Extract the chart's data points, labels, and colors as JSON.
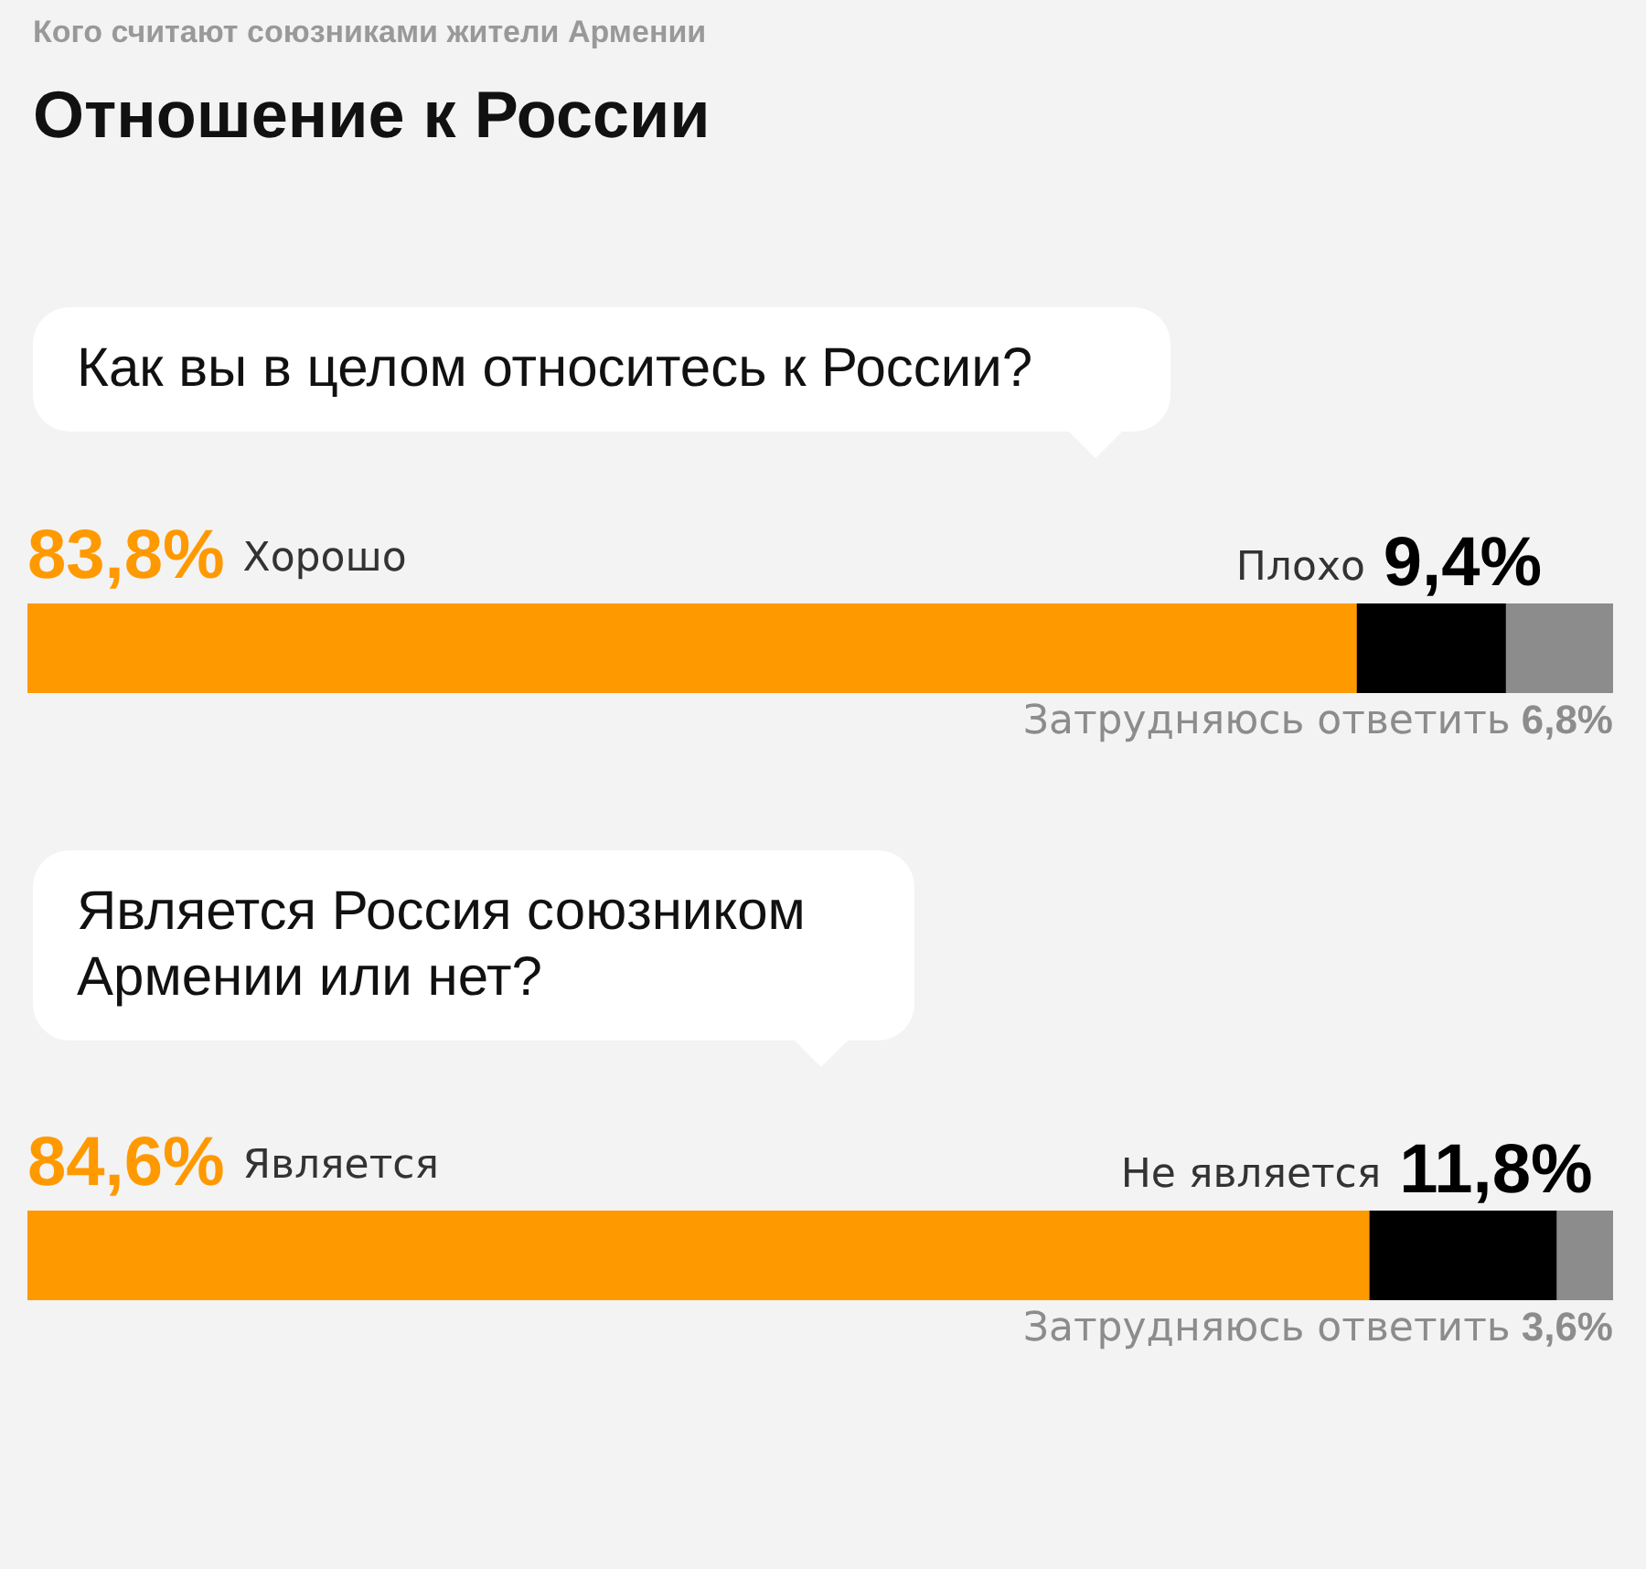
{
  "chart_data": [
    {
      "type": "other",
      "subtitle": "Кого считают союзниками жители Армении",
      "title": "Отношение к России"
    },
    {
      "type": "bar",
      "title": "Как вы в целом относитесь к России?",
      "orientation": "horizontal",
      "stacked": true,
      "categories": [
        null
      ],
      "xlim": [
        0,
        100
      ],
      "tick_labels": false,
      "series": [
        {
          "name": "Хорошо",
          "color": "#ff9900",
          "values": [
            83.8
          ],
          "value_labels": [
            "83,8%"
          ]
        },
        {
          "name": "Плохо",
          "color": "#000000",
          "values": [
            9.4
          ],
          "value_labels": [
            "9,4%"
          ]
        },
        {
          "name": "Затрудняюсь ответить",
          "color": "#8c8c8c",
          "values": [
            6.8
          ],
          "value_labels": [
            "6,8%"
          ]
        }
      ]
    },
    {
      "type": "bar",
      "title": "Является Россия союзником Армении или нет?",
      "orientation": "horizontal",
      "stacked": true,
      "categories": [
        null
      ],
      "xlim": [
        0,
        100
      ],
      "tick_labels": false,
      "series": [
        {
          "name": "Является",
          "color": "#ff9900",
          "values": [
            84.6
          ],
          "value_labels": [
            "84,6%"
          ]
        },
        {
          "name": "Не является",
          "color": "#000000",
          "values": [
            11.8
          ],
          "value_labels": [
            "11,8%"
          ]
        },
        {
          "name": "Затрудняюсь ответить",
          "color": "#8c8c8c",
          "values": [
            3.6
          ],
          "value_labels": [
            "3,6%"
          ]
        }
      ]
    }
  ]
}
